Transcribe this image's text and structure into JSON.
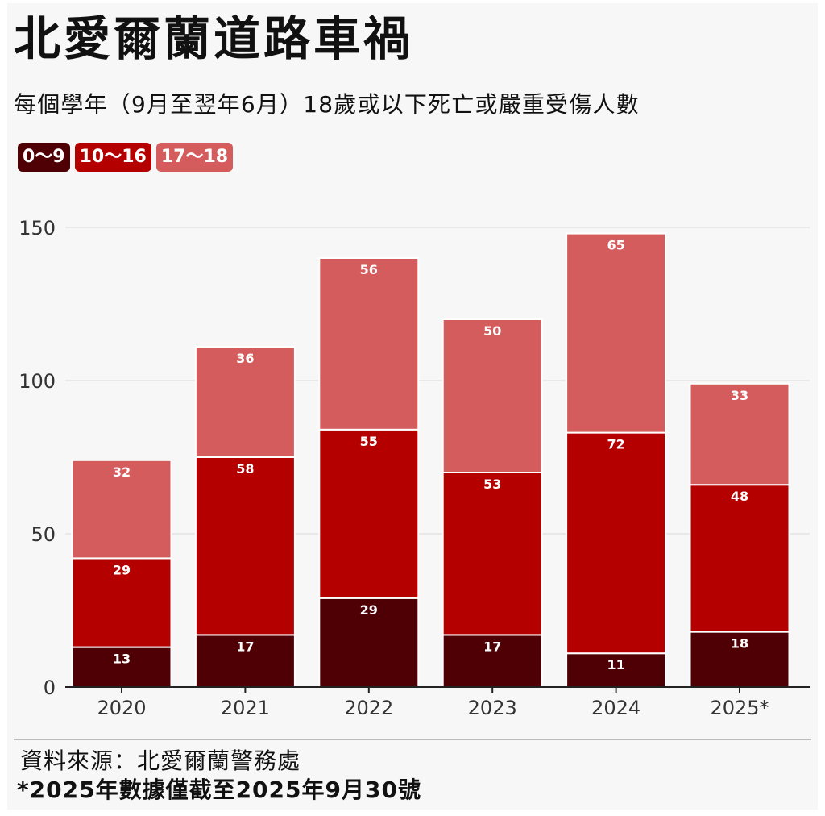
{
  "title": "北愛爾蘭道路車禍",
  "subtitle": "每個學年（9月至翌年6月）18歲或以下死亡或嚴重受傷人數",
  "source": "資料來源：北愛爾蘭警務處",
  "footnote": "*2025年數據僅截至2025年9月30號",
  "colors": {
    "age_0_9": "#4f0004",
    "age_10_16": "#b50000",
    "age_17_18": "#d55c5c",
    "axis": "#222222",
    "grid": "#e3e3e3",
    "background": "#f7f7f7"
  },
  "chart_data": {
    "type": "bar",
    "stacked": true,
    "categories": [
      "2020",
      "2021",
      "2022",
      "2023",
      "2024",
      "2025*"
    ],
    "series": [
      {
        "name": "0～9",
        "color": "#4f0004",
        "values": [
          13,
          17,
          29,
          17,
          11,
          18
        ]
      },
      {
        "name": "10～16",
        "color": "#b50000",
        "values": [
          29,
          58,
          55,
          53,
          72,
          48
        ]
      },
      {
        "name": "17～18",
        "color": "#d55c5c",
        "values": [
          32,
          36,
          56,
          50,
          65,
          33
        ]
      }
    ],
    "ylim": [
      0,
      150
    ],
    "yticks": [
      0,
      50,
      100,
      150
    ],
    "grid": true,
    "legend_position": "top-left",
    "xlabel": "",
    "ylabel": ""
  }
}
